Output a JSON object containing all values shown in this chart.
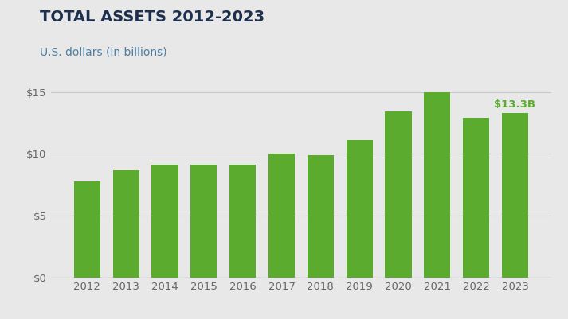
{
  "title": "TOTAL ASSETS 2012-2023",
  "subtitle": "U.S. dollars (in billions)",
  "years": [
    2012,
    2013,
    2014,
    2015,
    2016,
    2017,
    2018,
    2019,
    2020,
    2021,
    2022,
    2023
  ],
  "values": [
    7.8,
    8.7,
    9.1,
    9.1,
    9.1,
    10.0,
    9.9,
    11.1,
    13.4,
    15.0,
    12.9,
    13.3
  ],
  "bar_color": "#5aab2e",
  "annotation_text": "$13.3B",
  "annotation_color": "#5aab2e",
  "background_color": "#e8e8e8",
  "title_color": "#1c2f4d",
  "subtitle_color": "#4a7fa5",
  "tick_color": "#666666",
  "ylim": [
    0,
    16.5
  ],
  "yticks": [
    0,
    5,
    10,
    15
  ],
  "ytick_labels": [
    "$0",
    "$5",
    "$10",
    "$15"
  ],
  "grid_color": "#c8c8c8",
  "title_fontsize": 14,
  "subtitle_fontsize": 10,
  "tick_fontsize": 9.5
}
